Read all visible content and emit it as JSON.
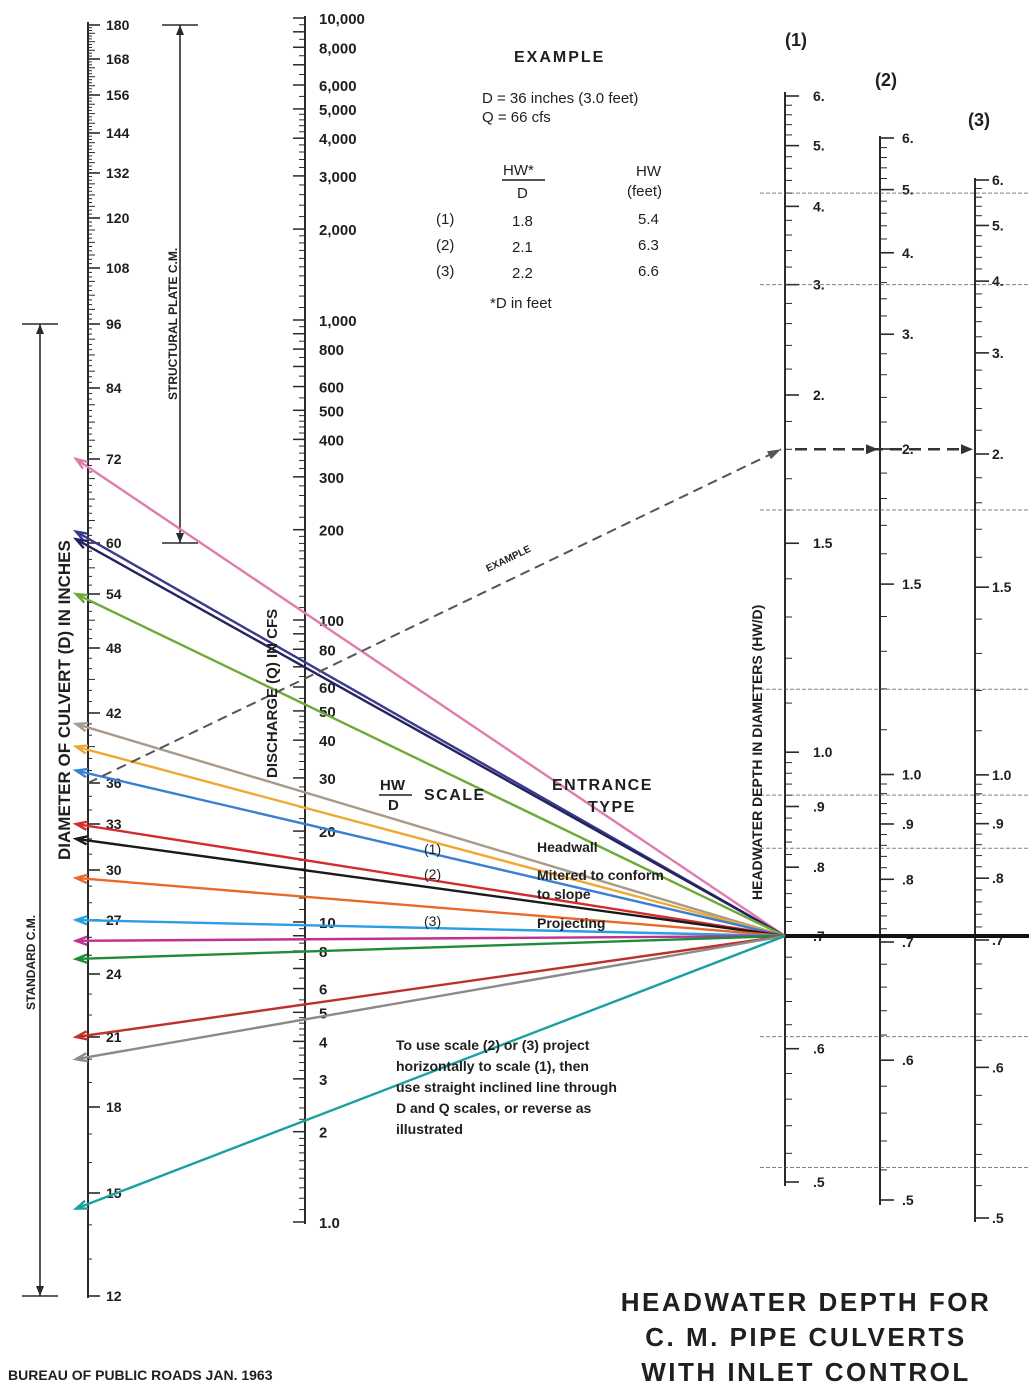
{
  "chart_data": {
    "type": "nomograph",
    "title": "HEADWATER DEPTH FOR C. M. PIPE CULVERTS WITH INLET CONTROL",
    "title_lines": [
      "HEADWATER DEPTH FOR",
      "C. M. PIPE CULVERTS",
      "WITH  INLET  CONTROL"
    ],
    "source": "BUREAU OF PUBLIC ROADS JAN. 1963",
    "diameter_scale": {
      "label": "DIAMETER OF CULVERT (D) IN INCHES",
      "ticks": [
        180,
        168,
        156,
        144,
        132,
        120,
        108,
        96,
        84,
        72,
        60,
        54,
        48,
        42,
        36,
        33,
        30,
        27,
        24,
        21,
        18,
        15,
        12
      ],
      "tick_labels": [
        "180",
        "168",
        "156",
        "144",
        "132",
        "120",
        "108",
        "96",
        "84",
        "72",
        "60",
        "54",
        "48",
        "42",
        "36",
        "33",
        "30",
        "27",
        "24",
        "21",
        "18",
        "15",
        "12"
      ],
      "structural_plate_label": "STRUCTURAL PLATE C.M.",
      "standard_label": "STANDARD C.M."
    },
    "discharge_scale": {
      "label": "DISCHARGE (Q) IN CFS",
      "ticks": [
        10000,
        8000,
        6000,
        5000,
        4000,
        3000,
        2000,
        1000,
        800,
        600,
        500,
        400,
        300,
        200,
        100,
        80,
        60,
        50,
        40,
        30,
        20,
        10,
        8,
        6,
        5,
        4,
        3,
        2,
        1
      ],
      "tick_labels": [
        "10,000",
        "8,000",
        "6,000",
        "5,000",
        "4,000",
        "3,000",
        "2,000",
        "1,000",
        "800",
        "600",
        "500",
        "400",
        "300",
        "200",
        "100",
        "80",
        "60",
        "50",
        "40",
        "30",
        "20",
        "10",
        "8",
        "6",
        "5",
        "4",
        "3",
        "2",
        "1.0"
      ]
    },
    "hwd_scales": {
      "label": "HEADWATER DEPTH IN DIAMETERS (HW/D)",
      "scale_names": [
        "(1)",
        "(2)",
        "(3)"
      ],
      "scale1": {
        "ticks": [
          6,
          5,
          4,
          3,
          2,
          1.5,
          1.0,
          0.9,
          0.8,
          0.7,
          0.6,
          0.5
        ],
        "tick_labels": [
          "6.",
          "5.",
          "4.",
          "3.",
          "2.",
          "1.5",
          "1.0",
          ".9",
          ".8",
          ".7",
          ".6",
          ".5"
        ]
      },
      "scale2": {
        "ticks": [
          6,
          5,
          4,
          3,
          2,
          1.5,
          1.0,
          0.9,
          0.8,
          0.7,
          0.6,
          0.5
        ],
        "tick_labels": [
          "6.",
          "5.",
          "4.",
          "3.",
          "2.",
          "1.5",
          "1.0",
          ".9",
          ".8",
          ".7",
          ".6",
          ".5"
        ]
      },
      "scale3": {
        "ticks": [
          6,
          5,
          4,
          3,
          2,
          1.5,
          1.0,
          0.9,
          0.8,
          0.7,
          0.6,
          0.5
        ],
        "tick_labels": [
          "6.",
          "5.",
          "4.",
          "3.",
          "2.",
          "1.5",
          "1.0",
          ".9",
          ".8",
          ".7",
          ".6",
          ".5"
        ]
      }
    },
    "example": {
      "heading": "EXAMPLE",
      "line1": "D = 36 inches (3.0 feet)",
      "line2": "Q = 66 cfs",
      "col_hwd_num": "HW*",
      "col_hwd_den": "D",
      "col_hw": "HW",
      "col_hw_unit": "(feet)",
      "rows": [
        {
          "scale": "(1)",
          "hwd": "1.8",
          "hw": "5.4"
        },
        {
          "scale": "(2)",
          "hwd": "2.1",
          "hw": "6.3"
        },
        {
          "scale": "(3)",
          "hwd": "2.2",
          "hw": "6.6"
        }
      ],
      "note": "*D in feet",
      "line_label": "EXAMPLE"
    },
    "entrance_type_table": {
      "col1_num": "HW",
      "col1_den": "D",
      "col1_word": "SCALE",
      "col2_line1": "ENTRANCE",
      "col2_line2": "TYPE",
      "rows": [
        {
          "scale": "(1)",
          "type": "Headwall"
        },
        {
          "scale": "(2)",
          "type": "Mitered to conform",
          "type2": "to slope"
        },
        {
          "scale": "(3)",
          "type": "Projecting"
        }
      ]
    },
    "instructions": [
      "To use scale (2) or (3) project",
      "horizontally to scale (1), then",
      "use straight inclined line through",
      "D and Q scales, or reverse as",
      "illustrated"
    ],
    "overlay_lines": [
      {
        "d_in": 72,
        "color": "#e07bb0"
      },
      {
        "d_in": 61.5,
        "color": "#3a3a8c"
      },
      {
        "d_in": 60.5,
        "color": "#25235f"
      },
      {
        "d_in": 54,
        "color": "#6fa93a"
      },
      {
        "d_in": 41,
        "color": "#a89a8a"
      },
      {
        "d_in": 39,
        "color": "#f0a830"
      },
      {
        "d_in": 37,
        "color": "#3b7fd4"
      },
      {
        "d_in": 33,
        "color": "#d42c2c"
      },
      {
        "d_in": 32,
        "color": "#1a1a1a"
      },
      {
        "d_in": 29.5,
        "color": "#e86a2a"
      },
      {
        "d_in": 27,
        "color": "#2a9ee0"
      },
      {
        "d_in": 25.8,
        "color": "#c0308e"
      },
      {
        "d_in": 24.8,
        "color": "#1e8c3a"
      },
      {
        "d_in": 21,
        "color": "#c0302a"
      },
      {
        "d_in": 20,
        "color": "#8a8a8a"
      },
      {
        "d_in": 14.5,
        "color": "#1aa0a0"
      }
    ],
    "pivot_hwd_scale1": 0.7
  }
}
